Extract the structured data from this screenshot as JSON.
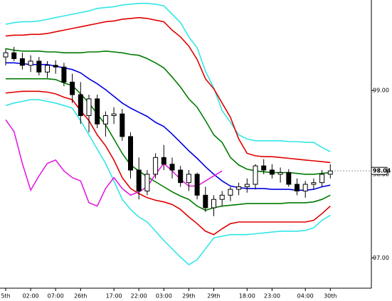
{
  "chart_data": {
    "type": "candlestick",
    "categories": [
      "5th",
      null,
      null,
      "02:00",
      null,
      null,
      "07:00",
      null,
      null,
      "26th",
      null,
      null,
      null,
      "17:00",
      null,
      null,
      "22:00",
      null,
      null,
      "03:00",
      null,
      null,
      "29th",
      null,
      null,
      "29th",
      null,
      null,
      null,
      "18:00",
      null,
      null,
      "23:00",
      null,
      null,
      null,
      "04:00",
      null,
      null,
      "30th"
    ],
    "open": [
      99.4,
      99.45,
      99.38,
      99.3,
      99.35,
      99.22,
      99.3,
      99.28,
      99.1,
      98.95,
      98.7,
      98.9,
      98.6,
      98.7,
      98.72,
      98.45,
      98.05,
      97.8,
      98.0,
      98.2,
      98.12,
      98.05,
      97.9,
      98.0,
      97.75,
      97.6,
      97.7,
      97.75,
      97.82,
      97.85,
      97.88,
      98.1,
      98.05,
      98.0,
      98.02,
      97.88,
      97.8,
      97.88,
      97.9,
      98.0
    ],
    "high": [
      99.5,
      99.52,
      99.45,
      99.42,
      99.4,
      99.35,
      99.36,
      99.33,
      99.2,
      99.1,
      98.95,
      98.95,
      98.75,
      98.8,
      98.78,
      98.5,
      98.2,
      98.05,
      98.25,
      98.35,
      98.2,
      98.1,
      98.05,
      98.02,
      97.85,
      97.75,
      97.8,
      97.85,
      97.9,
      97.95,
      98.12,
      98.18,
      98.12,
      98.08,
      98.06,
      97.95,
      97.92,
      97.95,
      98.05,
      98.12
    ],
    "low": [
      99.3,
      99.35,
      99.25,
      99.22,
      99.18,
      99.15,
      99.2,
      99.05,
      98.85,
      98.6,
      98.5,
      98.55,
      98.45,
      98.6,
      98.4,
      97.95,
      97.7,
      97.75,
      97.95,
      98.05,
      97.95,
      97.85,
      97.8,
      97.7,
      97.55,
      97.5,
      97.62,
      97.68,
      97.75,
      97.78,
      97.82,
      98.0,
      97.95,
      97.9,
      97.85,
      97.75,
      97.72,
      97.82,
      97.85,
      97.95
    ],
    "close": [
      99.45,
      99.38,
      99.3,
      99.35,
      99.22,
      99.3,
      99.28,
      99.1,
      98.95,
      98.7,
      98.9,
      98.6,
      98.7,
      98.72,
      98.45,
      98.05,
      97.8,
      98.0,
      98.2,
      98.12,
      98.05,
      97.9,
      98.0,
      97.75,
      97.6,
      97.7,
      97.75,
      97.82,
      97.85,
      97.88,
      98.1,
      98.05,
      98.0,
      98.02,
      97.88,
      97.8,
      97.88,
      97.9,
      98.0,
      98.04
    ],
    "series": [
      {
        "color": "#33e6e6",
        "values": [
          99.79,
          99.81,
          99.82,
          99.82,
          99.83,
          99.85,
          99.87,
          99.89,
          99.91,
          99.93,
          99.95,
          99.98,
          99.99,
          100.0,
          100.02,
          100.03,
          100.04,
          100.04,
          100.03,
          100.01,
          99.91,
          99.81,
          99.64,
          99.51,
          99.23,
          99.03,
          98.76,
          98.62,
          98.47,
          98.42,
          98.4,
          98.4,
          98.4,
          98.4,
          98.39,
          98.39,
          98.38,
          98.38,
          98.32,
          98.27
        ]
      },
      {
        "color": "#e00000",
        "values": [
          99.65,
          99.66,
          99.66,
          99.67,
          99.67,
          99.68,
          99.7,
          99.72,
          99.74,
          99.76,
          99.78,
          99.8,
          99.82,
          99.83,
          99.85,
          99.86,
          99.87,
          99.86,
          99.84,
          99.82,
          99.72,
          99.64,
          99.53,
          99.37,
          99.14,
          99.02,
          98.85,
          98.68,
          98.42,
          98.25,
          98.22,
          98.21,
          98.21,
          98.2,
          98.19,
          98.18,
          98.17,
          98.16,
          98.15,
          98.14
        ]
      },
      {
        "color": "#007a00",
        "values": [
          99.5,
          99.48,
          99.47,
          99.47,
          99.47,
          99.46,
          99.46,
          99.45,
          99.45,
          99.45,
          99.46,
          99.46,
          99.47,
          99.46,
          99.45,
          99.43,
          99.42,
          99.38,
          99.33,
          99.27,
          99.16,
          99.04,
          98.9,
          98.8,
          98.64,
          98.47,
          98.38,
          98.2,
          98.11,
          98.06,
          98.04,
          98.03,
          98.02,
          98.02,
          98.02,
          98.01,
          98.0,
          98.0,
          98.01,
          98.02
        ]
      },
      {
        "color": "#0000e0",
        "values": [
          99.33,
          99.33,
          99.32,
          99.31,
          99.31,
          99.31,
          99.29,
          99.27,
          99.25,
          99.21,
          99.14,
          99.08,
          99.01,
          98.93,
          98.85,
          98.79,
          98.74,
          98.69,
          98.62,
          98.57,
          98.48,
          98.38,
          98.28,
          98.19,
          98.09,
          98.0,
          97.92,
          97.86,
          97.84,
          97.83,
          97.83,
          97.83,
          97.82,
          97.82,
          97.82,
          97.81,
          97.81,
          97.82,
          97.85,
          97.87
        ]
      },
      {
        "color": "#007a00",
        "values": [
          99.14,
          99.14,
          99.14,
          99.14,
          99.14,
          99.14,
          99.13,
          99.09,
          99.06,
          98.96,
          98.85,
          98.72,
          98.59,
          98.42,
          98.25,
          98.11,
          98.04,
          97.97,
          97.91,
          97.85,
          97.79,
          97.74,
          97.7,
          97.62,
          97.57,
          97.6,
          97.62,
          97.63,
          97.64,
          97.65,
          97.65,
          97.65,
          97.65,
          97.65,
          97.66,
          97.66,
          97.66,
          97.67,
          97.7,
          97.75
        ]
      },
      {
        "color": "#e00000",
        "values": [
          98.97,
          98.98,
          98.99,
          98.99,
          98.99,
          98.98,
          98.96,
          98.92,
          98.89,
          98.76,
          98.64,
          98.47,
          98.34,
          98.17,
          97.96,
          97.83,
          97.77,
          97.72,
          97.69,
          97.67,
          97.64,
          97.58,
          97.49,
          97.41,
          97.32,
          97.28,
          97.35,
          97.41,
          97.43,
          97.43,
          97.43,
          97.43,
          97.43,
          97.43,
          97.43,
          97.43,
          97.43,
          97.45,
          97.53,
          97.62
        ]
      },
      {
        "color": "#33e6e6",
        "values": [
          98.82,
          98.85,
          98.87,
          98.89,
          98.89,
          98.87,
          98.85,
          98.82,
          98.79,
          98.64,
          98.47,
          98.3,
          98.13,
          97.92,
          97.7,
          97.58,
          97.49,
          97.43,
          97.32,
          97.21,
          97.11,
          97.01,
          96.92,
          96.98,
          97.11,
          97.24,
          97.26,
          97.28,
          97.28,
          97.28,
          97.29,
          97.3,
          97.31,
          97.32,
          97.32,
          97.32,
          97.33,
          97.36,
          97.45,
          97.51
        ]
      },
      {
        "color": "#e020e0",
        "values": [
          98.65,
          98.51,
          98.13,
          97.81,
          97.98,
          98.13,
          98.17,
          98.04,
          97.96,
          97.92,
          97.66,
          97.62,
          97.83,
          97.96,
          97.83,
          97.75,
          97.79,
          97.85,
          98.0,
          98.13,
          98.04,
          97.94,
          97.86,
          97.86,
          97.92,
          97.98,
          98.04,
          null,
          null,
          null,
          null,
          null,
          null,
          null,
          null,
          null,
          null,
          null,
          null,
          null
        ]
      }
    ],
    "last_price": 98.04,
    "ylim": [
      96.64,
      100.08
    ],
    "yticks": [
      {
        "value": 97,
        "label": "97.00"
      },
      {
        "value": 98,
        "label": "98.00"
      },
      {
        "value": 99,
        "label": "99.00"
      }
    ],
    "grid": false
  }
}
